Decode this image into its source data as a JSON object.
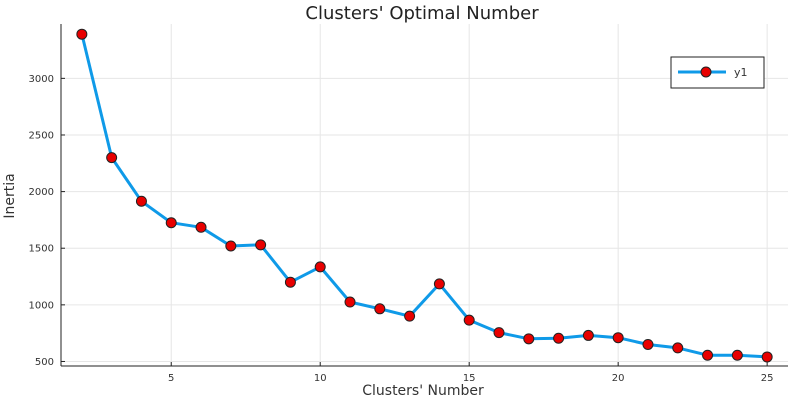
{
  "chart_data": {
    "type": "line",
    "title": "Clusters' Optimal  Number",
    "xlabel": "Clusters' Number",
    "ylabel": "Inertia",
    "xlim": [
      1.3,
      25.7
    ],
    "ylim": [
      460,
      3480
    ],
    "xticks": [
      5,
      10,
      15,
      20,
      25
    ],
    "yticks": [
      500,
      1000,
      1500,
      2000,
      2500,
      3000
    ],
    "grid": true,
    "legend_position": "top-right",
    "series": [
      {
        "name": "y1",
        "line_color": "#0f9ae8",
        "marker_color": "#e80000",
        "x": [
          2,
          3,
          4,
          5,
          6,
          7,
          8,
          9,
          10,
          11,
          12,
          13,
          14,
          15,
          16,
          17,
          18,
          19,
          20,
          21,
          22,
          23,
          24,
          25
        ],
        "y": [
          3390,
          2300,
          1915,
          1725,
          1685,
          1520,
          1530,
          1200,
          1335,
          1025,
          965,
          900,
          1185,
          865,
          755,
          700,
          705,
          730,
          710,
          650,
          620,
          555,
          555,
          540
        ]
      }
    ]
  }
}
